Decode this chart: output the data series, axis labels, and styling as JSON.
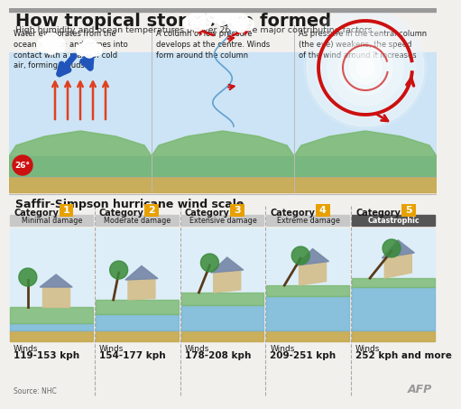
{
  "title": "How tropical storms are formed",
  "subtitle": "High humidity and ocean temperatures of over 26°C are major contributing factors",
  "bg_color": "#f2f0ed",
  "title_color": "#1a1a1a",
  "subtitle_color": "#333333",
  "top_panel_texts": [
    "Water evaporates from the\nocean surface and comes into\ncontact with a mass of cold\nair, forming clouds",
    "A column of low pressure\ndevelops at the centre. Winds\nform around the column",
    "As pressure in the central column\n(the eye) weakens, the speed\nof the wind around it increases"
  ],
  "top_panel_bold_words": [
    "Water evaporates",
    "mass of cold\nair",
    "clouds",
    "column of low pressure",
    "Winds\nform",
    "speed\nof the wind around it increases"
  ],
  "scale_title": "Saffir-Simpson hurricane wind scale",
  "categories": [
    "1",
    "2",
    "3",
    "4",
    "5"
  ],
  "damage_labels": [
    "Minimal damage",
    "Moderate damage",
    "Extensive damage",
    "Extreme damage",
    "Catastrophic"
  ],
  "wind_intro": [
    "Winds",
    "Winds",
    "Winds",
    "Winds",
    "Winds"
  ],
  "wind_labels": [
    "119-153 kph",
    "154-177 kph",
    "178-208 kph",
    "209-251 kph",
    "252 kph and more"
  ],
  "cat_box_color": "#e8a000",
  "cat_text_color": "#ffffff",
  "damage_bg": "#c8c8c8",
  "damage_cat5_bg": "#555555",
  "damage_cat5_text": "#ffffff",
  "dashed_line_color": "#aaaaaa",
  "source_text": "Source: NHC",
  "afp_text": "AFP",
  "top_panel_bg": "#d8eaf5",
  "top_panel_border": "#bbbbbb",
  "sky_color": "#cce4f5",
  "water_color": "#6aaed6",
  "land_color": "#7ab870",
  "ground_color": "#c8a84b",
  "arrow_red": "#cc1010",
  "arrow_blue": "#2255bb",
  "cat_panel_bg": "#f2f0ed",
  "cat_water_color": "#7ab8d8",
  "cat_land_color": "#7ab870",
  "cat_ground_color": "#c8a84b",
  "title_bar_color": "#e8e4de",
  "divider_color": "#bbbbbb"
}
